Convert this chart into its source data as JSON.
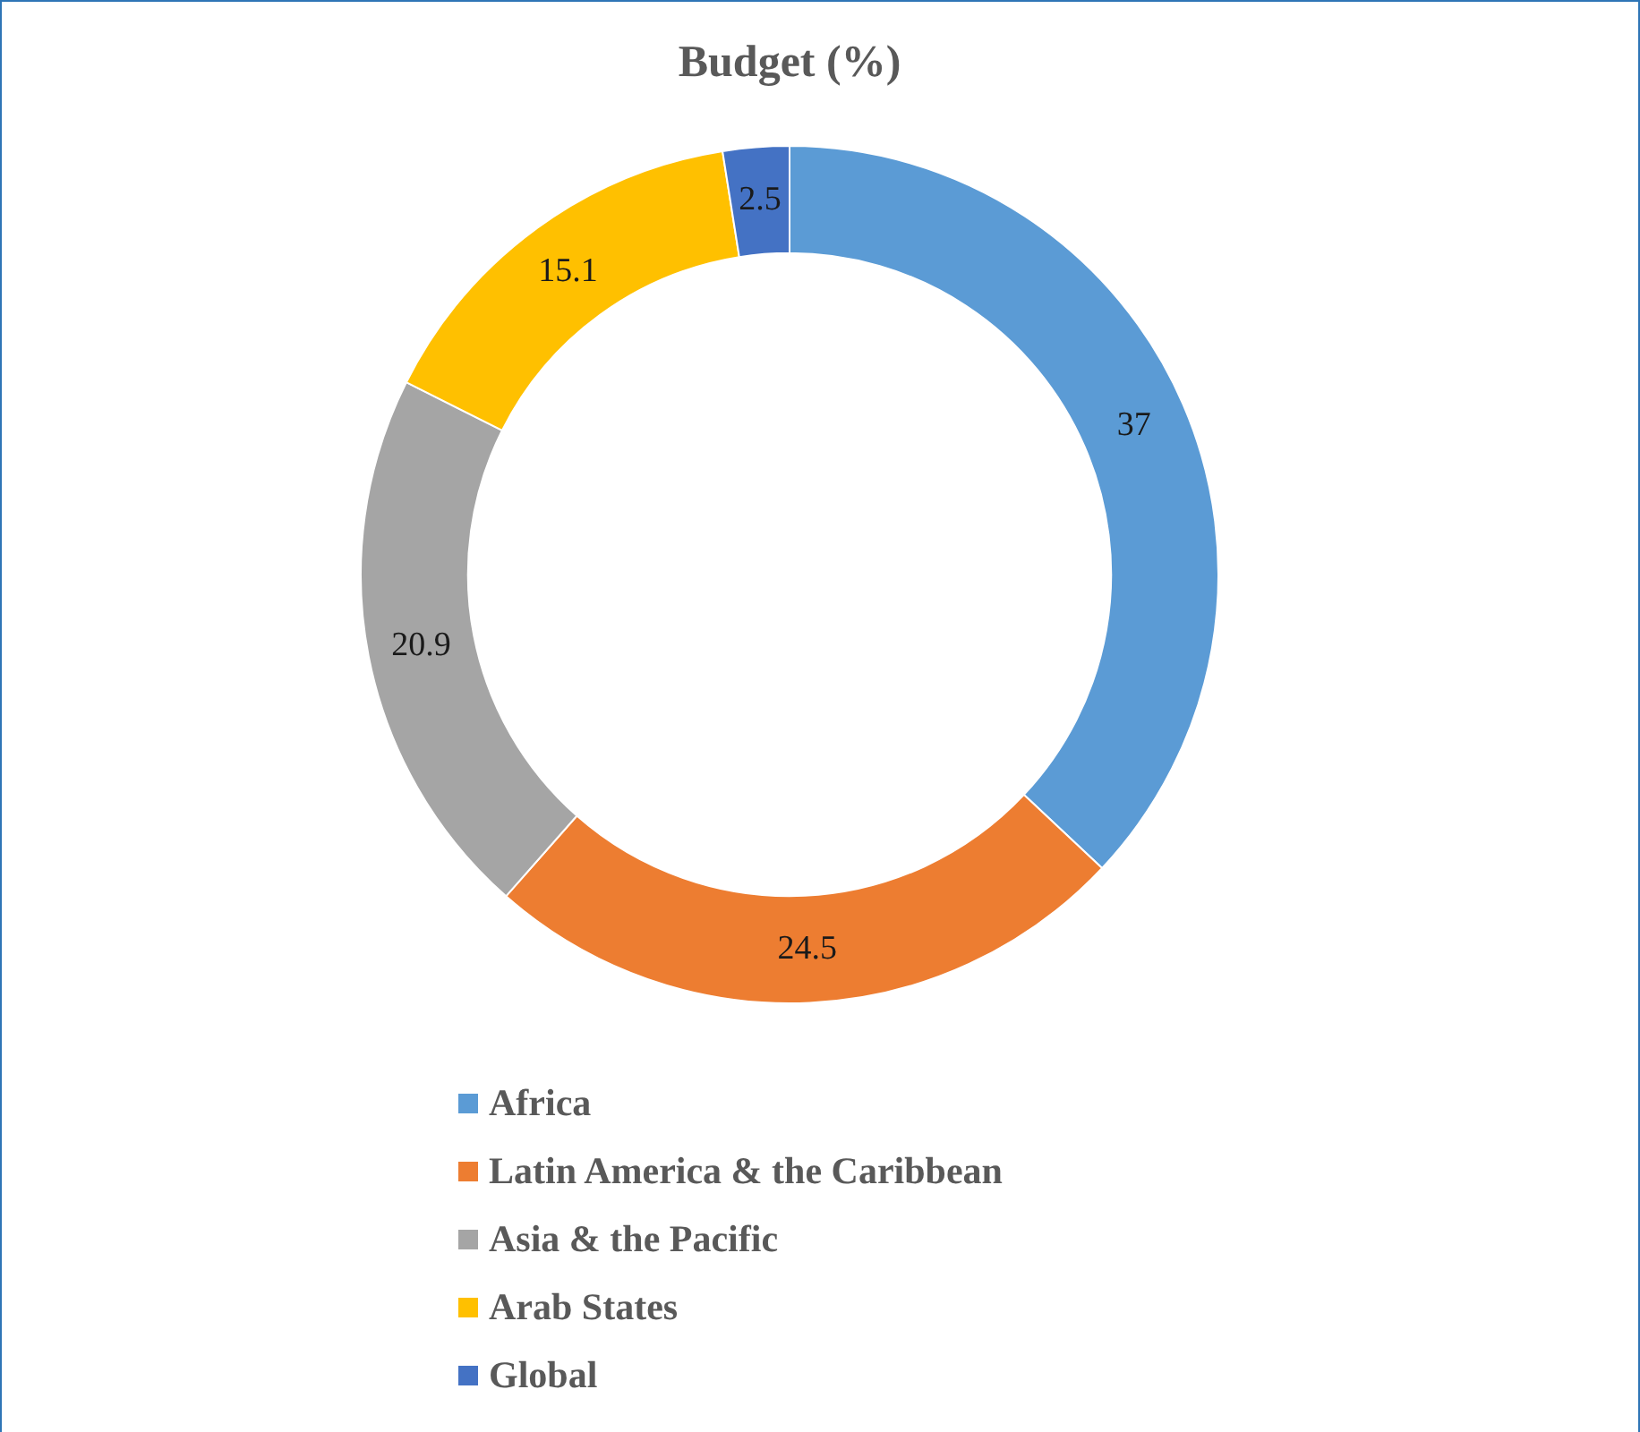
{
  "chart_data": {
    "type": "donut",
    "title": "Budget (%)",
    "categories": [
      "Africa",
      "Latin America & the Caribbean",
      "Asia & the Pacific",
      "Arab States",
      "Global"
    ],
    "values": [
      37,
      24.5,
      20.9,
      15.1,
      2.5
    ],
    "colors": [
      "#5b9bd5",
      "#ed7d31",
      "#a5a5a5",
      "#ffc000",
      "#4472c4"
    ],
    "data_labels": true,
    "legend": "bottom"
  }
}
